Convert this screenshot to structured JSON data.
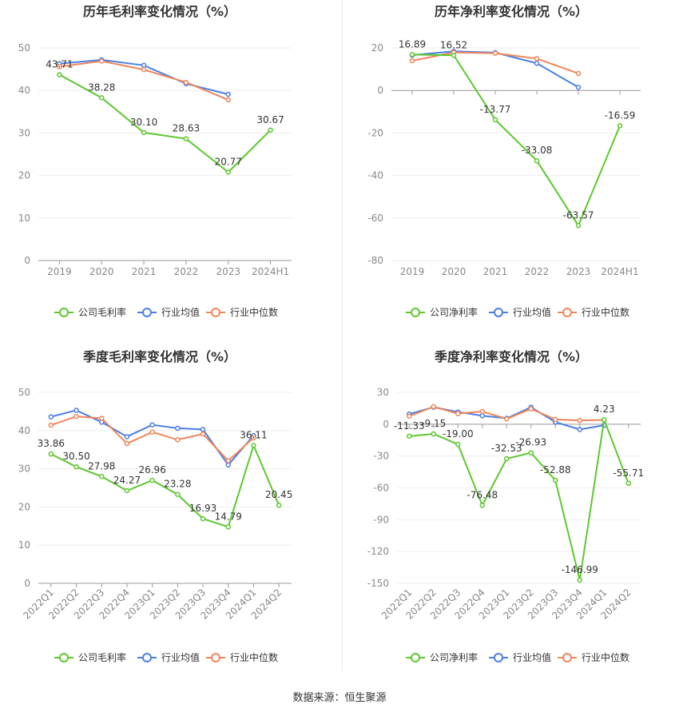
{
  "colors": {
    "company": "#5cc82e",
    "industry_avg": "#4a7ee6",
    "industry_median": "#f0855a",
    "axis": "#999999",
    "grid": "#eeeeee",
    "text": "#333333",
    "tick": "#888888"
  },
  "legend": {
    "gross": [
      "公司毛利率",
      "行业均值",
      "行业中位数"
    ],
    "net": [
      "公司净利率",
      "行业均值",
      "行业中位数"
    ]
  },
  "source": "数据来源：恒生聚源",
  "chart_data": [
    {
      "type": "line",
      "title": "历年毛利率变化情况（%）",
      "categories": [
        "2019",
        "2020",
        "2021",
        "2022",
        "2023",
        "2024H1"
      ],
      "ylim": [
        0,
        50
      ],
      "yticks": [
        0,
        10,
        20,
        30,
        40,
        50
      ],
      "legend_key": "gross",
      "series": [
        {
          "name": "公司毛利率",
          "values": [
            43.71,
            38.28,
            30.1,
            28.63,
            20.77,
            30.67
          ],
          "labels": [
            "43.71",
            "38.28",
            "30.10",
            "28.63",
            "20.77",
            "30.67"
          ]
        },
        {
          "name": "行业均值",
          "values": [
            46.3,
            47.2,
            45.9,
            41.6,
            39.1,
            null
          ]
        },
        {
          "name": "行业中位数",
          "values": [
            45.6,
            46.9,
            44.9,
            41.9,
            37.8,
            null
          ]
        }
      ]
    },
    {
      "type": "line",
      "title": "历年净利率变化情况（%）",
      "categories": [
        "2019",
        "2020",
        "2021",
        "2022",
        "2023",
        "2024H1"
      ],
      "ylim": [
        -80,
        20
      ],
      "yticks": [
        -80,
        -60,
        -40,
        -20,
        0,
        20
      ],
      "legend_key": "net",
      "series": [
        {
          "name": "公司净利率",
          "values": [
            16.89,
            16.52,
            -13.77,
            -33.08,
            -63.57,
            -16.59
          ],
          "labels": [
            "16.89",
            "16.52",
            "-13.77",
            "-33.08",
            "-63.57",
            "-16.59"
          ]
        },
        {
          "name": "行业均值",
          "values": [
            16.6,
            18.4,
            17.8,
            12.8,
            1.5,
            null
          ]
        },
        {
          "name": "行业中位数",
          "values": [
            14.0,
            17.9,
            17.5,
            15.0,
            8.0,
            null
          ]
        }
      ]
    },
    {
      "type": "line",
      "title": "季度毛利率变化情况（%）",
      "categories": [
        "2022Q1",
        "2022Q2",
        "2022Q3",
        "2022Q4",
        "2023Q1",
        "2023Q2",
        "2023Q3",
        "2023Q4",
        "2024Q1",
        "2024Q2"
      ],
      "ylim": [
        0,
        50
      ],
      "yticks": [
        0,
        10,
        20,
        30,
        40,
        50
      ],
      "legend_key": "gross",
      "series": [
        {
          "name": "公司毛利率",
          "values": [
            33.86,
            30.5,
            27.98,
            24.27,
            26.96,
            23.28,
            16.93,
            14.79,
            36.11,
            20.45
          ],
          "labels": [
            "33.86",
            "30.50",
            "27.98",
            "24.27",
            "26.96",
            "23.28",
            "16.93",
            "14.79",
            "36.11",
            "20.45"
          ]
        },
        {
          "name": "行业均值",
          "values": [
            43.6,
            45.3,
            42.2,
            38.4,
            41.5,
            40.6,
            40.3,
            31.0,
            38.7,
            null
          ]
        },
        {
          "name": "行业中位数",
          "values": [
            41.4,
            43.7,
            43.2,
            36.6,
            39.6,
            37.6,
            39.1,
            32.1,
            38.1,
            null
          ]
        }
      ]
    },
    {
      "type": "line",
      "title": "季度净利率变化情况（%）",
      "categories": [
        "2022Q1",
        "2022Q2",
        "2022Q3",
        "2022Q4",
        "2023Q1",
        "2023Q2",
        "2023Q3",
        "2023Q4",
        "2024Q1",
        "2024Q2"
      ],
      "ylim": [
        -150,
        30
      ],
      "yticks": [
        -150,
        -120,
        -90,
        -60,
        -30,
        0,
        30
      ],
      "legend_key": "net",
      "series": [
        {
          "name": "公司净利率",
          "values": [
            -11.33,
            -9.15,
            -19.0,
            -76.48,
            -32.53,
            -26.93,
            -52.88,
            -146.99,
            4.23,
            -55.71
          ],
          "labels": [
            "-11.33",
            "-9.15",
            "-19.00",
            "-76.48",
            "-32.53",
            "-26.93",
            "-52.88",
            "-146.99",
            "4.23",
            "-55.71"
          ]
        },
        {
          "name": "行业均值",
          "values": [
            9.5,
            16.0,
            11.5,
            8.0,
            5.5,
            16.0,
            2.0,
            -5.0,
            -1.0,
            null
          ]
        },
        {
          "name": "行业中位数",
          "values": [
            7.5,
            16.5,
            10.0,
            12.0,
            5.0,
            14.5,
            4.5,
            3.5,
            4.0,
            null
          ]
        }
      ]
    }
  ]
}
